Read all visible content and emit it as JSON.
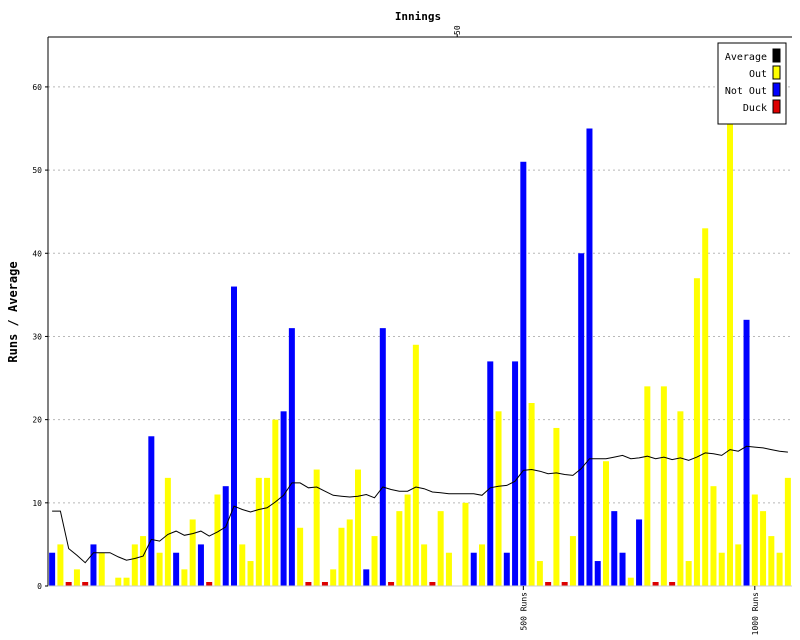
{
  "chart_data": {
    "type": "bar",
    "title": "Innings",
    "ylabel": "Runs / Average",
    "ylim": [
      0,
      66
    ],
    "yticks": [
      0,
      10,
      20,
      30,
      40,
      50,
      60
    ],
    "top_tick": {
      "innings": 50,
      "label": "50"
    },
    "runs_markers": [
      {
        "innings": 58,
        "label": "500 Runs"
      },
      {
        "innings": 86,
        "label": "1000 Runs"
      }
    ],
    "grid": "horizontal dotted",
    "legend_position": "top-right",
    "legend": [
      {
        "label": "Average",
        "color": "#000000"
      },
      {
        "label": "Out",
        "color": "#ffff00"
      },
      {
        "label": "Not Out",
        "color": "#0000ff"
      },
      {
        "label": "Duck",
        "color": "#dd0000"
      }
    ],
    "innings": [
      {
        "runs": 4,
        "status": "not_out",
        "average": 9.0
      },
      {
        "runs": 5,
        "status": "out",
        "average": 9.0
      },
      {
        "runs": 0,
        "status": "duck",
        "average": 4.5
      },
      {
        "runs": 2,
        "status": "out",
        "average": 3.7
      },
      {
        "runs": 0,
        "status": "duck",
        "average": 2.8
      },
      {
        "runs": 5,
        "status": "not_out",
        "average": 4.0
      },
      {
        "runs": 4,
        "status": "out",
        "average": 4.0
      },
      {
        "runs": 0,
        "status": "skip",
        "average": 4.0
      },
      {
        "runs": 1,
        "status": "out",
        "average": 3.5
      },
      {
        "runs": 1,
        "status": "out",
        "average": 3.1
      },
      {
        "runs": 5,
        "status": "out",
        "average": 3.3
      },
      {
        "runs": 6,
        "status": "out",
        "average": 3.6
      },
      {
        "runs": 18,
        "status": "not_out",
        "average": 5.6
      },
      {
        "runs": 4,
        "status": "out",
        "average": 5.4
      },
      {
        "runs": 13,
        "status": "out",
        "average": 6.2
      },
      {
        "runs": 4,
        "status": "not_out",
        "average": 6.6
      },
      {
        "runs": 2,
        "status": "out",
        "average": 6.1
      },
      {
        "runs": 8,
        "status": "out",
        "average": 6.3
      },
      {
        "runs": 5,
        "status": "not_out",
        "average": 6.6
      },
      {
        "runs": 0,
        "status": "duck",
        "average": 6.0
      },
      {
        "runs": 11,
        "status": "out",
        "average": 6.5
      },
      {
        "runs": 12,
        "status": "not_out",
        "average": 7.1
      },
      {
        "runs": 36,
        "status": "not_out",
        "average": 9.6
      },
      {
        "runs": 5,
        "status": "out",
        "average": 9.2
      },
      {
        "runs": 3,
        "status": "out",
        "average": 8.9
      },
      {
        "runs": 13,
        "status": "out",
        "average": 9.2
      },
      {
        "runs": 13,
        "status": "out",
        "average": 9.4
      },
      {
        "runs": 20,
        "status": "out",
        "average": 10.1
      },
      {
        "runs": 21,
        "status": "not_out",
        "average": 10.9
      },
      {
        "runs": 31,
        "status": "not_out",
        "average": 12.4
      },
      {
        "runs": 7,
        "status": "out",
        "average": 12.4
      },
      {
        "runs": 0,
        "status": "duck",
        "average": 11.8
      },
      {
        "runs": 14,
        "status": "out",
        "average": 11.9
      },
      {
        "runs": 0,
        "status": "duck",
        "average": 11.4
      },
      {
        "runs": 2,
        "status": "out",
        "average": 10.9
      },
      {
        "runs": 7,
        "status": "out",
        "average": 10.8
      },
      {
        "runs": 8,
        "status": "out",
        "average": 10.7
      },
      {
        "runs": 14,
        "status": "out",
        "average": 10.8
      },
      {
        "runs": 2,
        "status": "not_out",
        "average": 11.0
      },
      {
        "runs": 6,
        "status": "out",
        "average": 10.6
      },
      {
        "runs": 31,
        "status": "not_out",
        "average": 11.9
      },
      {
        "runs": 0,
        "status": "duck",
        "average": 11.6
      },
      {
        "runs": 9,
        "status": "out",
        "average": 11.4
      },
      {
        "runs": 11,
        "status": "out",
        "average": 11.4
      },
      {
        "runs": 29,
        "status": "out",
        "average": 11.9
      },
      {
        "runs": 5,
        "status": "out",
        "average": 11.7
      },
      {
        "runs": 0,
        "status": "duck",
        "average": 11.3
      },
      {
        "runs": 9,
        "status": "out",
        "average": 11.2
      },
      {
        "runs": 4,
        "status": "out",
        "average": 11.1
      },
      {
        "runs": 0,
        "status": "skip",
        "average": 11.1
      },
      {
        "runs": 10,
        "status": "out",
        "average": 11.1
      },
      {
        "runs": 4,
        "status": "not_out",
        "average": 11.1
      },
      {
        "runs": 5,
        "status": "out",
        "average": 10.9
      },
      {
        "runs": 27,
        "status": "not_out",
        "average": 11.8
      },
      {
        "runs": 21,
        "status": "out",
        "average": 12.0
      },
      {
        "runs": 4,
        "status": "not_out",
        "average": 12.1
      },
      {
        "runs": 27,
        "status": "not_out",
        "average": 12.6
      },
      {
        "runs": 51,
        "status": "not_out",
        "average": 13.9
      },
      {
        "runs": 22,
        "status": "out",
        "average": 14.0
      },
      {
        "runs": 3,
        "status": "out",
        "average": 13.8
      },
      {
        "runs": 0,
        "status": "duck",
        "average": 13.5
      },
      {
        "runs": 19,
        "status": "out",
        "average": 13.6
      },
      {
        "runs": 0,
        "status": "duck",
        "average": 13.4
      },
      {
        "runs": 6,
        "status": "out",
        "average": 13.3
      },
      {
        "runs": 40,
        "status": "not_out",
        "average": 14.1
      },
      {
        "runs": 55,
        "status": "not_out",
        "average": 15.3
      },
      {
        "runs": 3,
        "status": "not_out",
        "average": 15.3
      },
      {
        "runs": 15,
        "status": "out",
        "average": 15.3
      },
      {
        "runs": 9,
        "status": "not_out",
        "average": 15.5
      },
      {
        "runs": 4,
        "status": "not_out",
        "average": 15.7
      },
      {
        "runs": 1,
        "status": "out",
        "average": 15.3
      },
      {
        "runs": 8,
        "status": "not_out",
        "average": 15.4
      },
      {
        "runs": 24,
        "status": "out",
        "average": 15.6
      },
      {
        "runs": 0,
        "status": "duck",
        "average": 15.3
      },
      {
        "runs": 24,
        "status": "out",
        "average": 15.5
      },
      {
        "runs": 0,
        "status": "duck",
        "average": 15.2
      },
      {
        "runs": 21,
        "status": "out",
        "average": 15.4
      },
      {
        "runs": 3,
        "status": "out",
        "average": 15.1
      },
      {
        "runs": 37,
        "status": "out",
        "average": 15.5
      },
      {
        "runs": 43,
        "status": "out",
        "average": 16.0
      },
      {
        "runs": 12,
        "status": "out",
        "average": 15.9
      },
      {
        "runs": 4,
        "status": "out",
        "average": 15.7
      },
      {
        "runs": 58,
        "status": "out",
        "average": 16.4
      },
      {
        "runs": 5,
        "status": "out",
        "average": 16.2
      },
      {
        "runs": 32,
        "status": "not_out",
        "average": 16.8
      },
      {
        "runs": 11,
        "status": "out",
        "average": 16.7
      },
      {
        "runs": 9,
        "status": "out",
        "average": 16.6
      },
      {
        "runs": 6,
        "status": "out",
        "average": 16.4
      },
      {
        "runs": 4,
        "status": "out",
        "average": 16.2
      },
      {
        "runs": 13,
        "status": "out",
        "average": 16.1
      }
    ]
  }
}
